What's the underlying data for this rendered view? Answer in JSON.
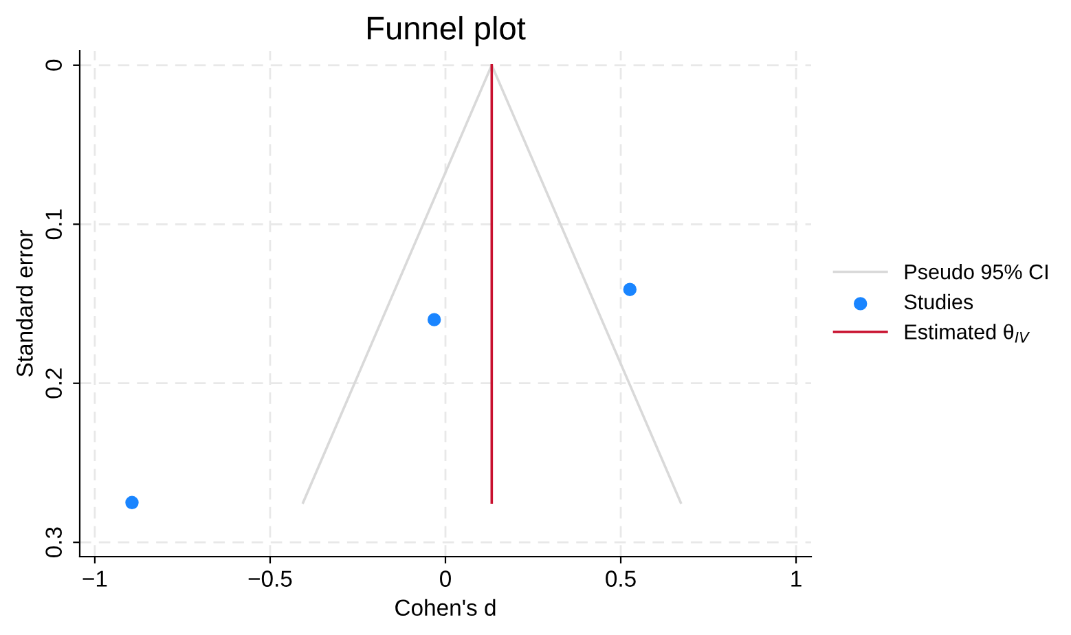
{
  "chart_data": {
    "type": "scatter",
    "title": "Funnel plot",
    "xlabel": "Cohen's d",
    "ylabel": "Standard error",
    "series": [
      {
        "name": "Pseudo 95% CI",
        "type": "line",
        "color": "#d9d9d9",
        "x": [
          -0.406,
          0.132,
          0.671
        ],
        "values": [
          0.275,
          0,
          0.275
        ],
        "marker": "none"
      },
      {
        "name": "Studies",
        "color": "#1a85ff",
        "x": [
          -0.894,
          -0.032,
          0.526
        ],
        "values": [
          0.275,
          0.16,
          0.141
        ],
        "marker": "circle"
      },
      {
        "name": "Estimated θ$_{IV}$",
        "type": "line",
        "color": "#c8102e",
        "x": [
          0.132,
          0.132
        ],
        "values": [
          0,
          0.275
        ],
        "marker": "none"
      }
    ],
    "xlim": [
      -1.043,
      1.043
    ],
    "ylim": [
      0.309,
      -0.009
    ],
    "xticks": [
      {
        "value": -1,
        "label": "−1"
      },
      {
        "value": -0.5,
        "label": "−0.5"
      },
      0,
      0.5,
      1
    ],
    "yticks": [
      0,
      0.1,
      0.2,
      0.3
    ],
    "grid": true,
    "legend": "right"
  }
}
